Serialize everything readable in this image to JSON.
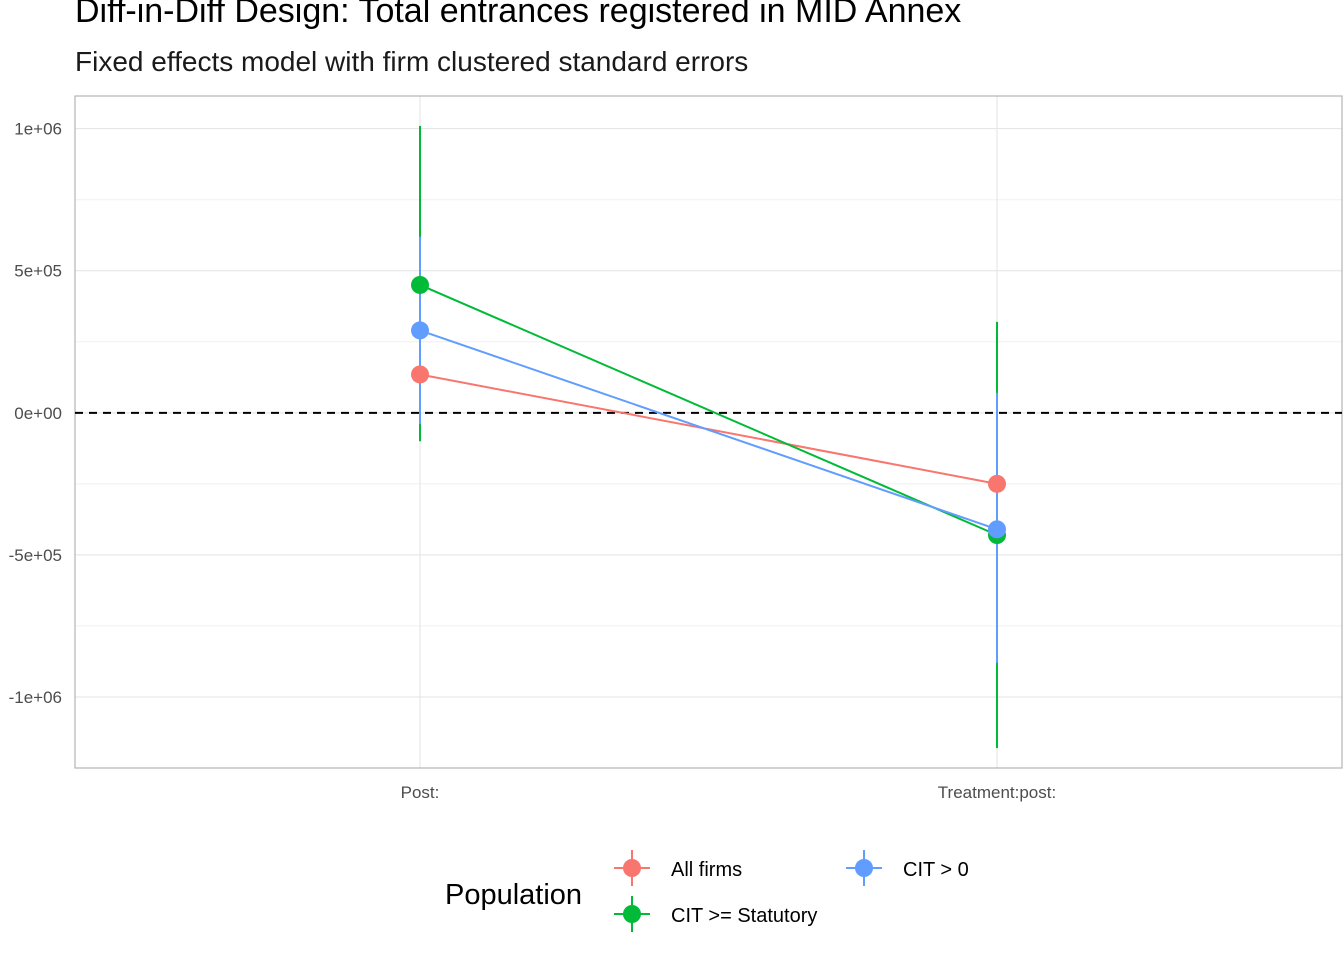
{
  "chart_data": {
    "type": "scatter",
    "title": "Diff-in-Diff Design: Total entrances registered in MID Annex",
    "subtitle": "Fixed effects model with firm clustered standard errors",
    "xlabel": "",
    "ylabel": "",
    "categories": [
      "Post:",
      "Treatment:post:"
    ],
    "ylim": [
      -1250000,
      1115000
    ],
    "y_ticks": [
      1000000,
      500000,
      0,
      -500000,
      -1000000
    ],
    "y_tick_labels": [
      "1e+06",
      "5e+05",
      "0e+00",
      "-5e+05",
      "-1e+06"
    ],
    "reference_line": {
      "y": 0,
      "style": "dashed"
    },
    "grid": true,
    "legend": {
      "title": "Population",
      "position": "bottom"
    },
    "series": [
      {
        "name": "All firms",
        "color": "#F8766D",
        "values": [
          135000,
          -250000
        ],
        "ci_low": [
          -10000,
          -420000
        ],
        "ci_high": [
          280000,
          -80000
        ]
      },
      {
        "name": "CIT >= Statutory",
        "color": "#00BA38",
        "values": [
          450000,
          -430000
        ],
        "ci_low": [
          -100000,
          -1180000
        ],
        "ci_high": [
          1010000,
          320000
        ]
      },
      {
        "name": "CIT > 0",
        "color": "#619CFF",
        "values": [
          290000,
          -410000
        ],
        "ci_low": [
          -40000,
          -880000
        ],
        "ci_high": [
          620000,
          70000
        ]
      }
    ]
  }
}
